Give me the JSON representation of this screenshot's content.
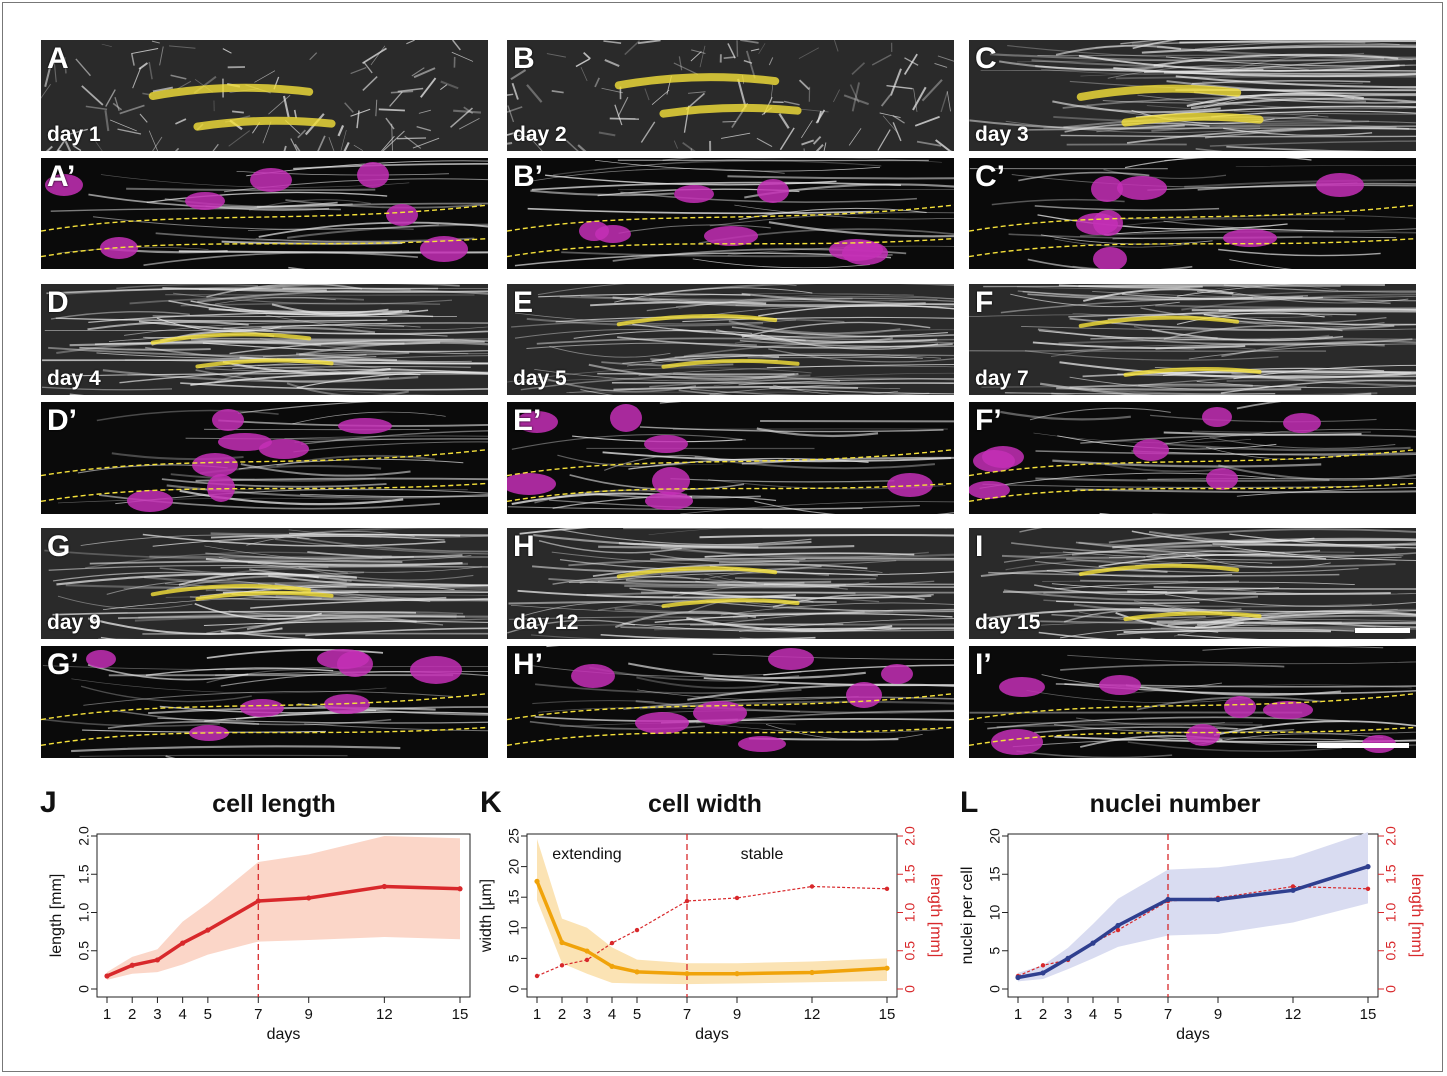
{
  "panels": [
    {
      "id": "A",
      "label": "A",
      "day": "day 1"
    },
    {
      "id": "B",
      "label": "B",
      "day": "day 2"
    },
    {
      "id": "C",
      "label": "C",
      "day": "day 3"
    },
    {
      "id": "A2",
      "label": "A’"
    },
    {
      "id": "B2",
      "label": "B’"
    },
    {
      "id": "C2",
      "label": "C’"
    },
    {
      "id": "D",
      "label": "D",
      "day": "day 4"
    },
    {
      "id": "E",
      "label": "E",
      "day": "day 5"
    },
    {
      "id": "F",
      "label": "F",
      "day": "day 7"
    },
    {
      "id": "D2",
      "label": "D’"
    },
    {
      "id": "E2",
      "label": "E’"
    },
    {
      "id": "F2",
      "label": "F’"
    },
    {
      "id": "G",
      "label": "G",
      "day": "day 9"
    },
    {
      "id": "H",
      "label": "H",
      "day": "day 12"
    },
    {
      "id": "I",
      "label": "I",
      "day": "day 15"
    },
    {
      "id": "G2",
      "label": "G’"
    },
    {
      "id": "H2",
      "label": "H’"
    },
    {
      "id": "I2",
      "label": "I’"
    }
  ],
  "colors": {
    "actin": "#e6e6e6",
    "nuclei": "#c42fb6",
    "outline": "#f5e13a",
    "red": "#d8282b",
    "red_band": "#fbd6c8",
    "orange": "#f0a30a",
    "orange_band": "#fbe3b4",
    "blue": "#2f3f8f",
    "blue_band": "#d9dcf1"
  },
  "chart_data": [
    {
      "type": "line",
      "panel_label": "J",
      "title": "cell length",
      "xlabel": "days",
      "ylabel": "length [mm]",
      "x": [
        1,
        2,
        3,
        4,
        5,
        7,
        9,
        12,
        15
      ],
      "xticks": [
        "1",
        "2",
        "3",
        "4",
        "5",
        "7",
        "9",
        "12",
        "15"
      ],
      "ylim": [
        0,
        2.0
      ],
      "yticks": [
        "0",
        "0.5",
        "1.0",
        "1.5",
        "2.0"
      ],
      "vline_x": 7,
      "series": [
        {
          "values": [
            0.17,
            0.31,
            0.38,
            0.6,
            0.77,
            1.15,
            1.19,
            1.34,
            1.31
          ],
          "lower": [
            0.12,
            0.2,
            0.22,
            0.32,
            0.45,
            0.62,
            0.64,
            0.68,
            0.65
          ],
          "upper": [
            0.22,
            0.42,
            0.52,
            0.88,
            1.12,
            1.66,
            1.76,
            2.0,
            1.97
          ]
        }
      ]
    },
    {
      "type": "line",
      "panel_label": "K",
      "title": "cell width",
      "xlabel": "days",
      "ylabel": "width [µm]",
      "ylabel_right": "length [mm]",
      "x": [
        1,
        2,
        3,
        4,
        5,
        7,
        9,
        12,
        15
      ],
      "xticks": [
        "1",
        "2",
        "3",
        "4",
        "5",
        "7",
        "9",
        "12",
        "15"
      ],
      "ylim": [
        0,
        25
      ],
      "yticks": [
        "0",
        "5",
        "10",
        "15",
        "20",
        "25"
      ],
      "ylim_right": [
        0,
        2.0
      ],
      "yticks_right": [
        "0",
        "0.5",
        "1.0",
        "1.5",
        "2.0"
      ],
      "vline_x": 7,
      "annotations": [
        "extending",
        "stable"
      ],
      "series": [
        {
          "values": [
            17.6,
            7.6,
            6.2,
            3.7,
            2.8,
            2.5,
            2.5,
            2.7,
            3.4
          ],
          "lower": [
            14.5,
            4.2,
            2.5,
            1.0,
            0.9,
            0.8,
            0.9,
            1.1,
            1.3
          ],
          "upper": [
            24.5,
            11.5,
            10.0,
            6.8,
            4.8,
            4.2,
            4.2,
            4.5,
            5.0
          ]
        },
        {
          "axis": "right",
          "values": [
            0.17,
            0.31,
            0.38,
            0.6,
            0.77,
            1.15,
            1.19,
            1.34,
            1.31
          ]
        }
      ]
    },
    {
      "type": "line",
      "panel_label": "L",
      "title": "nuclei number",
      "xlabel": "days",
      "ylabel": "nuclei per cell",
      "ylabel_right": "length [mm]",
      "x": [
        1,
        2,
        3,
        4,
        5,
        7,
        9,
        12,
        15
      ],
      "xticks": [
        "1",
        "2",
        "3",
        "4",
        "5",
        "7",
        "9",
        "12",
        "15"
      ],
      "ylim": [
        0,
        20
      ],
      "yticks": [
        "0",
        "5",
        "10",
        "15",
        "20"
      ],
      "ylim_right": [
        0,
        2.0
      ],
      "yticks_right": [
        "0",
        "0.5",
        "1.0",
        "1.5",
        "2.0"
      ],
      "vline_x": 7,
      "series": [
        {
          "values": [
            1.5,
            2.1,
            4.0,
            6.0,
            8.3,
            11.7,
            11.7,
            12.9,
            16.0
          ],
          "lower": [
            1.0,
            1.3,
            2.6,
            4.0,
            5.5,
            7.0,
            7.2,
            8.7,
            11.2
          ],
          "upper": [
            2.1,
            3.1,
            5.4,
            8.5,
            11.8,
            15.6,
            15.9,
            17.2,
            20.5
          ]
        },
        {
          "axis": "right",
          "values": [
            0.17,
            0.31,
            0.38,
            0.6,
            0.77,
            1.15,
            1.19,
            1.34,
            1.31
          ]
        }
      ]
    }
  ]
}
